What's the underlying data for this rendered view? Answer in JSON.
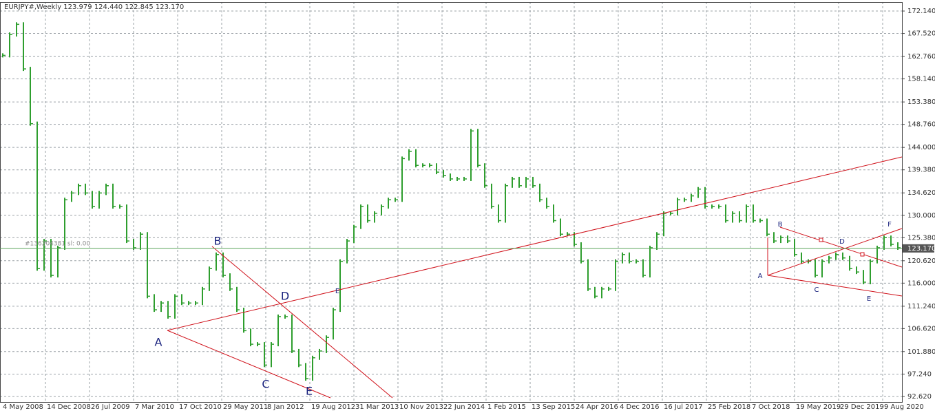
{
  "chart_data": {
    "type": "price",
    "title": "EURJPY#,Weekly  123.979 124.440 122.845 123.170",
    "color": "#2e9e2e",
    "ylim": [
      91.48,
      173.99
    ],
    "yticks": [
      {
        "value": 172.14,
        "label": "172.140"
      },
      {
        "value": 167.52,
        "label": "167.520"
      },
      {
        "value": 162.76,
        "label": "162.760"
      },
      {
        "value": 158.14,
        "label": "158.140"
      },
      {
        "value": 153.38,
        "label": "153.380"
      },
      {
        "value": 148.76,
        "label": "148.760"
      },
      {
        "value": 144.0,
        "label": "144.000"
      },
      {
        "value": 139.38,
        "label": "139.380"
      },
      {
        "value": 134.62,
        "label": "134.620"
      },
      {
        "value": 130.0,
        "label": "130.000"
      },
      {
        "value": 125.38,
        "label": "125.380"
      },
      {
        "value": 120.62,
        "label": "120.620"
      },
      {
        "value": 116.0,
        "label": "116.000"
      },
      {
        "value": 111.24,
        "label": "111.240"
      },
      {
        "value": 106.62,
        "label": "106.620"
      },
      {
        "value": 101.88,
        "label": "101.880"
      },
      {
        "value": 97.24,
        "label": "97.240"
      },
      {
        "value": 92.62,
        "label": "92.620"
      }
    ],
    "x_labels": [
      "4 May 2008",
      "14 Dec 2008",
      "26 Jul 2009",
      "7 Mar 2010",
      "17 Oct 2010",
      "29 May 2011",
      "8 Jan 2012",
      "19 Aug 2012",
      "31 Mar 2013",
      "10 Nov 2013",
      "22 Jun 2014",
      "1 Feb 2015",
      "13 Sep 2015",
      "24 Apr 2016",
      "4 Dec 2016",
      "16 Jul 2017",
      "25 Feb 2018",
      "7 Oct 2018",
      "19 May 2019",
      "29 Dec 2019",
      "9 Aug 2020"
    ],
    "grid": true,
    "last": {
      "value": 123.17,
      "label": "123.170"
    },
    "order_label": "#136204381 sl: 0.00",
    "values": [
      163.0,
      167.3,
      169.4,
      160.2,
      148.9,
      119.0,
      124.7,
      117.6,
      123.3,
      133.2,
      134.6,
      136.1,
      134.6,
      131.8,
      134.6,
      136.1,
      131.8,
      131.8,
      124.7,
      123.3,
      126.1,
      113.3,
      110.5,
      111.9,
      109.1,
      113.3,
      111.9,
      111.9,
      111.9,
      114.8,
      119.0,
      121.9,
      117.6,
      114.8,
      110.5,
      106.2,
      103.4,
      103.4,
      99.1,
      103.4,
      109.1,
      109.1,
      102.0,
      99.1,
      96.3,
      100.6,
      102.0,
      104.8,
      110.5,
      120.5,
      124.7,
      127.6,
      131.8,
      128.9,
      130.4,
      131.8,
      133.2,
      133.2,
      141.7,
      143.2,
      140.3,
      140.3,
      140.3,
      138.9,
      138.2,
      137.5,
      137.5,
      137.5,
      147.4,
      140.3,
      136.1,
      131.8,
      128.9,
      136.1,
      137.5,
      136.1,
      137.5,
      136.1,
      133.2,
      131.8,
      128.9,
      126.1,
      126.1,
      124.0,
      120.5,
      114.8,
      113.3,
      114.8,
      114.8,
      120.5,
      121.9,
      120.5,
      120.5,
      117.6,
      123.3,
      126.1,
      130.4,
      130.4,
      133.2,
      133.2,
      134.0,
      135.4,
      131.8,
      131.8,
      131.8,
      128.9,
      130.4,
      128.9,
      131.8,
      128.9,
      128.9,
      126.1,
      124.7,
      125.4,
      124.7,
      121.9,
      120.5,
      120.5,
      117.6,
      120.5,
      121.2,
      121.9,
      121.2,
      119.0,
      118.3,
      116.2,
      120.5,
      123.3,
      125.4,
      124.0,
      123.3
    ],
    "annotations": [
      "A",
      "B",
      "C",
      "D",
      "E",
      "E",
      "A",
      "B",
      "C",
      "D",
      "E",
      "F"
    ]
  }
}
